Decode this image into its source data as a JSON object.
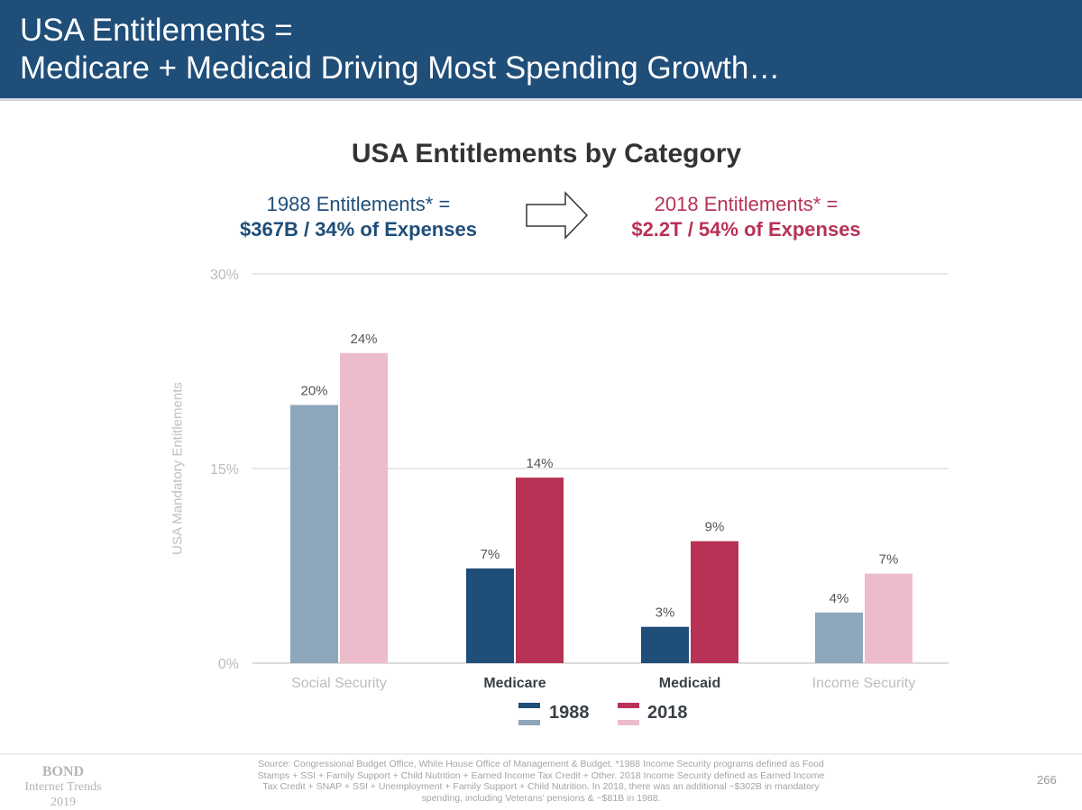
{
  "header": {
    "line1": "USA Entitlements =",
    "line2": "Medicare + Medicaid Driving Most Spending Growth…"
  },
  "summary": {
    "left": {
      "line1": "1988 Entitlements* =",
      "line2": "$367B / 34% of Expenses",
      "color": "#1f4e79"
    },
    "arrow_icon": "right-arrow-outline",
    "right": {
      "line1": "2018 Entitlements* =",
      "line2": "$2.2T / 54% of Expenses",
      "color": "#b83256"
    }
  },
  "chart_data": {
    "type": "bar",
    "title": "USA Entitlements by Category",
    "ylabel": "USA Mandatory Entitlements",
    "xlabel": "",
    "ylim": [
      0,
      30
    ],
    "yticks": [
      "0%",
      "15%",
      "30%"
    ],
    "ytick_values": [
      0,
      15,
      30
    ],
    "grid": true,
    "legend_position": "bottom",
    "categories": [
      "Social Security",
      "Medicare",
      "Medicaid",
      "Income Security"
    ],
    "highlighted": [
      false,
      true,
      true,
      false
    ],
    "series": [
      {
        "name": "1988",
        "values": [
          19.9,
          7.3,
          2.8,
          3.9
        ],
        "labels": [
          "20%",
          "7%",
          "3%",
          "4%"
        ],
        "color": "#1f4e79",
        "muted_color": "#8ea6ba"
      },
      {
        "name": "2018",
        "values": [
          23.9,
          14.3,
          9.4,
          6.9
        ],
        "labels": [
          "24%",
          "14%",
          "9%",
          "7%"
        ],
        "color": "#b83256",
        "muted_color": "#ecbccb"
      }
    ]
  },
  "footer": {
    "logo": {
      "line1": "BOND",
      "line2": "Internet Trends",
      "line3": "2019"
    },
    "source": "Source: Congressional Budget Office, White House Office of Management & Budget. *1988 Income Security programs defined as  Food Stamps + SSI + Family Support + Child Nutrition + Earned Income Tax Credit + Other. 2018 Income Security defined as Earned Income Tax Credit + SNAP + SSI + Unemployment + Family Support + Child Nutrition. In 2018, there was an additional ~$302B in mandatory spending, including Veterans' pensions & ~$81B in 1988.",
    "page": "266"
  }
}
